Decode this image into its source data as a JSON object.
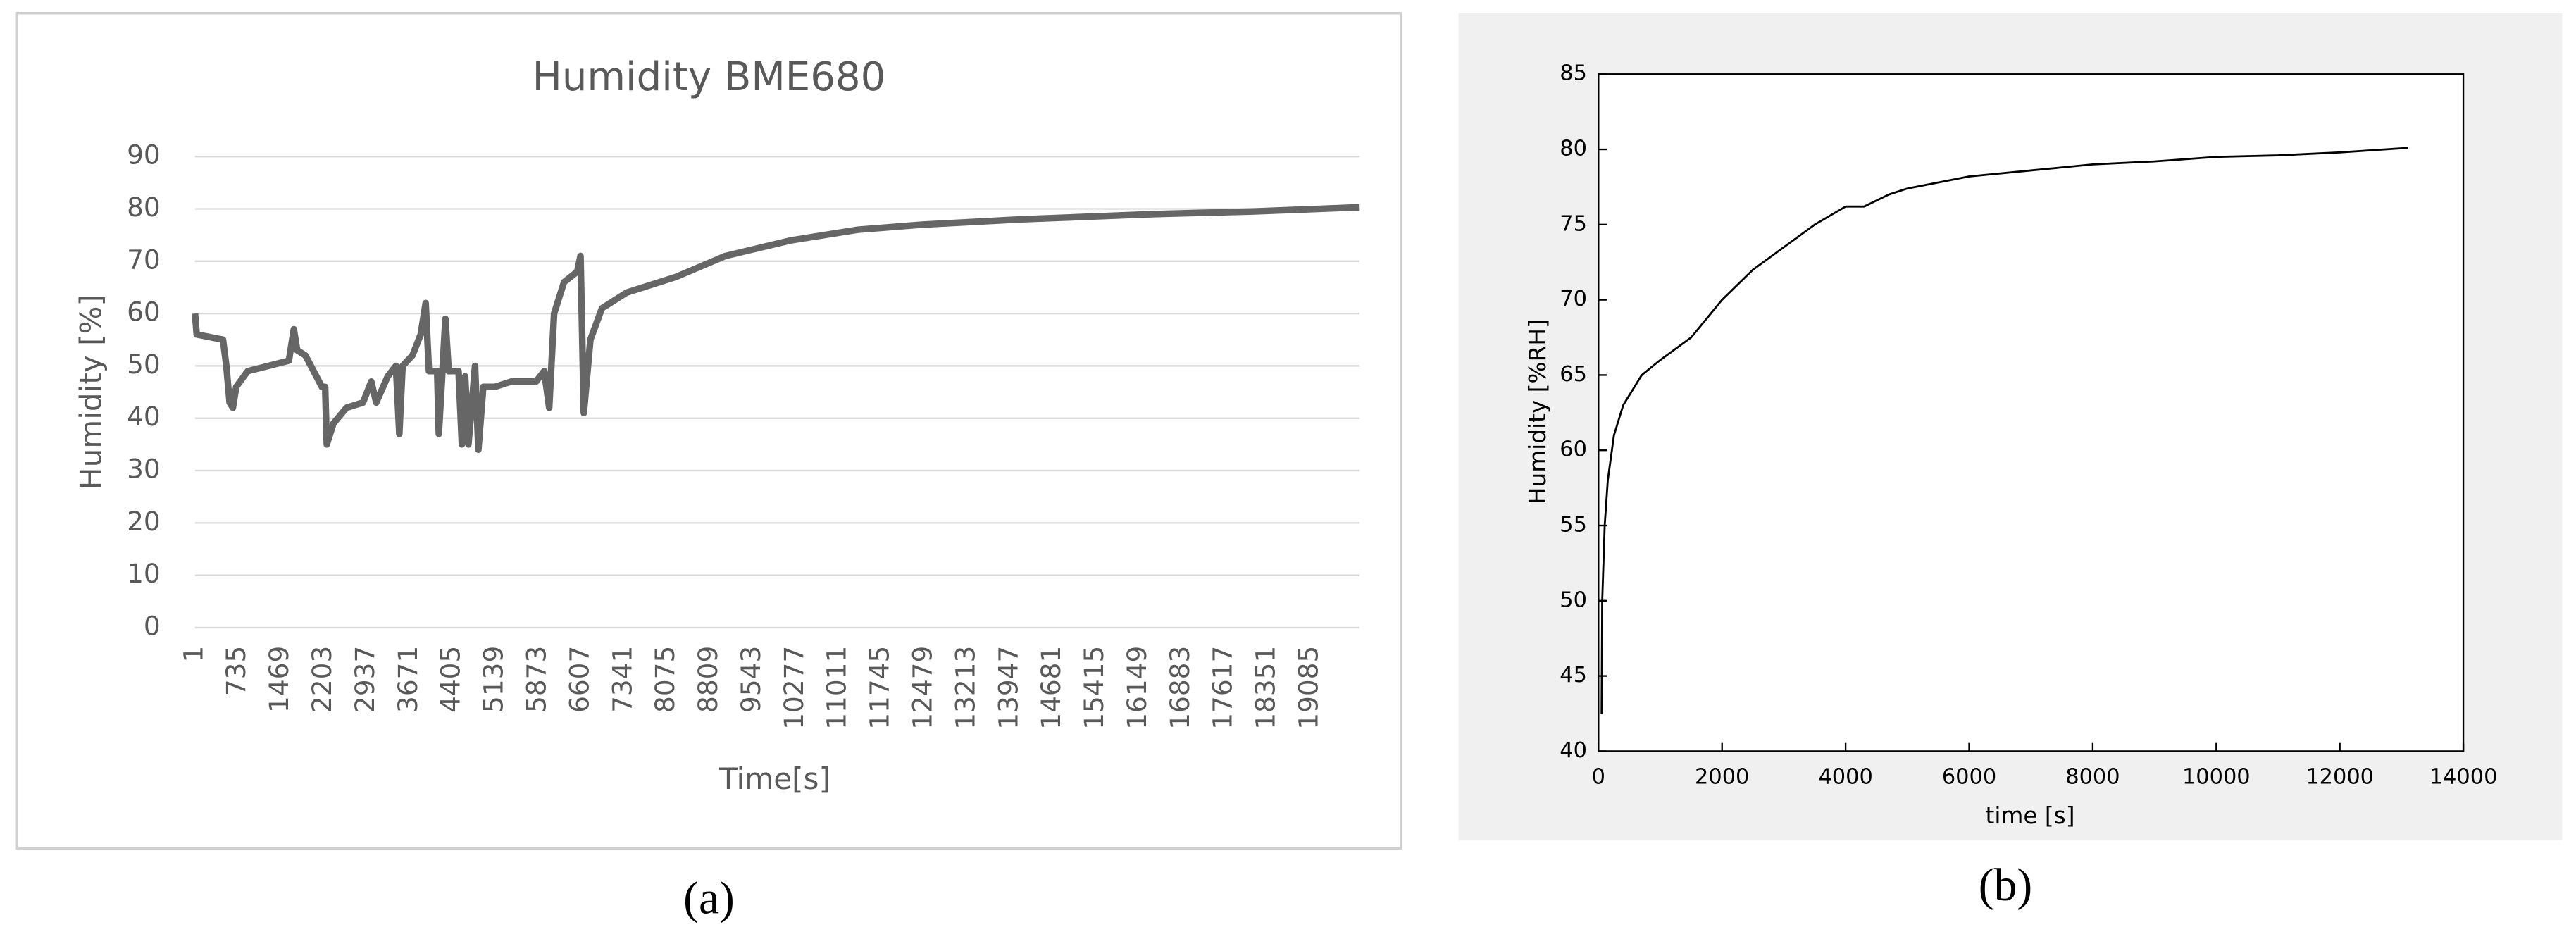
{
  "chart_data": [
    {
      "type": "line",
      "title": "Humidity BME680",
      "xlabel": "Time[s]",
      "ylabel": "Humidity [%]",
      "caption": "(a)",
      "x": [
        1,
        30,
        480,
        537,
        593,
        649,
        706,
        903,
        1608,
        1692,
        1749,
        1890,
        2031,
        2172,
        2228,
        2256,
        2369,
        2594,
        2876,
        3017,
        3102,
        3299,
        3440,
        3497,
        3553,
        3722,
        3863,
        3948,
        4004,
        4145,
        4173,
        4230,
        4286,
        4342,
        4511,
        4568,
        4624,
        4680,
        4793,
        4850,
        4934,
        5131,
        5413,
        5836,
        5977,
        6062,
        6146,
        6316,
        6541,
        6598,
        6654,
        6767,
        6964,
        7387,
        8233,
        9078,
        10206,
        11333,
        12461,
        14152,
        16408,
        18099,
        19931
      ],
      "values": [
        60,
        56,
        55,
        50,
        43,
        42,
        46,
        49,
        51,
        57,
        53,
        52,
        49,
        46,
        46,
        35,
        39,
        42,
        43,
        47,
        43,
        48,
        50,
        37,
        50,
        52,
        56,
        62,
        49,
        49,
        37,
        48,
        59,
        49,
        49,
        35,
        48,
        35,
        50,
        34,
        46,
        46,
        47,
        47,
        49,
        42,
        60,
        66,
        68,
        71,
        41,
        55,
        61,
        64,
        67,
        71,
        74,
        76,
        77,
        78,
        79,
        79.5,
        80.3
      ],
      "color": "#666666",
      "grid": true,
      "xlim": [
        1,
        19931
      ],
      "xticks": [
        1,
        735,
        1469,
        2203,
        2937,
        3671,
        4405,
        5139,
        5873,
        6607,
        7341,
        8075,
        8809,
        9543,
        10277,
        11011,
        11745,
        12479,
        13213,
        13947,
        14681,
        15415,
        16149,
        16883,
        17617,
        18351,
        19085
      ],
      "ylim": [
        0,
        90
      ],
      "yticks": [
        0,
        10,
        20,
        30,
        40,
        50,
        60,
        70,
        80,
        90
      ]
    },
    {
      "type": "line",
      "xlabel": "time [s]",
      "ylabel": "Humidity [%RH]",
      "caption": "(b)",
      "x": [
        50,
        60,
        100,
        150,
        250,
        400,
        700,
        1000,
        1500,
        2000,
        2500,
        3000,
        3500,
        4000,
        4300,
        4700,
        5000,
        6000,
        7000,
        8000,
        9000,
        10000,
        11000,
        12000,
        13100
      ],
      "values": [
        42.5,
        50,
        55,
        58,
        61,
        63,
        65,
        66,
        67.5,
        70,
        72,
        73.5,
        75,
        76.2,
        76.2,
        77,
        77.4,
        78.2,
        78.6,
        79,
        79.2,
        79.5,
        79.6,
        79.8,
        80.1
      ],
      "color": "#000000",
      "grid": false,
      "xlim": [
        0,
        14000
      ],
      "xticks": [
        0,
        2000,
        4000,
        6000,
        8000,
        10000,
        12000,
        14000
      ],
      "ylim": [
        40,
        85
      ],
      "yticks": [
        40,
        45,
        50,
        55,
        60,
        65,
        70,
        75,
        80,
        85
      ]
    }
  ]
}
